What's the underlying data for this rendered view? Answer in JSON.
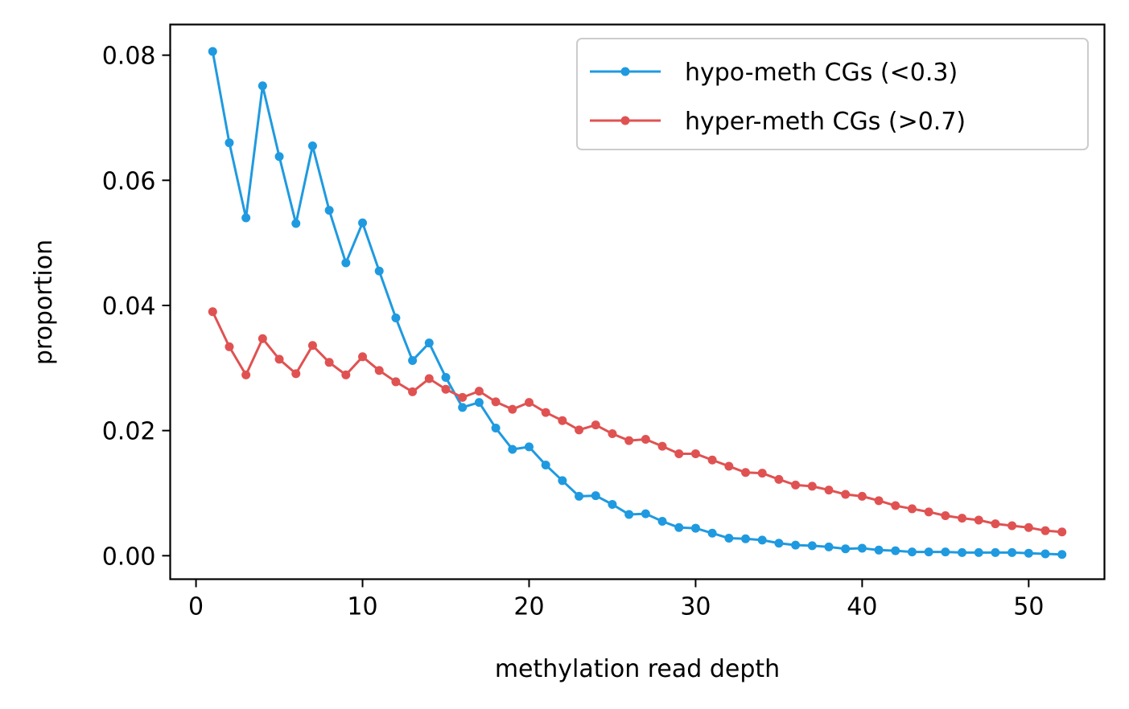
{
  "chart_data": {
    "type": "line",
    "title": "",
    "xlabel": "methylation read depth",
    "ylabel": "proportion",
    "xlim": [
      -1.55,
      54.55
    ],
    "ylim": [
      -0.00375,
      0.0849
    ],
    "xticks": [
      0,
      10,
      20,
      30,
      40,
      50
    ],
    "xtick_labels": [
      "0",
      "10",
      "20",
      "30",
      "40",
      "50"
    ],
    "yticks": [
      0.0,
      0.02,
      0.04,
      0.06,
      0.08
    ],
    "ytick_labels": [
      "0.00",
      "0.02",
      "0.04",
      "0.06",
      "0.08"
    ],
    "grid": false,
    "legend_position": "top-right",
    "x": [
      1,
      2,
      3,
      4,
      5,
      6,
      7,
      8,
      9,
      10,
      11,
      12,
      13,
      14,
      15,
      16,
      17,
      18,
      19,
      20,
      21,
      22,
      23,
      24,
      25,
      26,
      27,
      28,
      29,
      30,
      31,
      32,
      33,
      34,
      35,
      36,
      37,
      38,
      39,
      40,
      41,
      42,
      43,
      44,
      45,
      46,
      47,
      48,
      49,
      50,
      51,
      52
    ],
    "series": [
      {
        "name": "hypo-meth CGs (<0.3)",
        "color": "#1f9ae0",
        "values": [
          0.0806,
          0.066,
          0.054,
          0.0751,
          0.0638,
          0.0531,
          0.0655,
          0.0552,
          0.0468,
          0.0532,
          0.0455,
          0.038,
          0.0312,
          0.034,
          0.0285,
          0.0237,
          0.0245,
          0.0204,
          0.017,
          0.0174,
          0.0145,
          0.012,
          0.0095,
          0.0096,
          0.0082,
          0.0066,
          0.0067,
          0.0055,
          0.0045,
          0.0044,
          0.0036,
          0.0028,
          0.0027,
          0.0025,
          0.002,
          0.0017,
          0.0016,
          0.0014,
          0.0011,
          0.0012,
          0.0009,
          0.0008,
          0.0006,
          0.0006,
          0.0006,
          0.0005,
          0.0005,
          0.0005,
          0.0005,
          0.0004,
          0.0003,
          0.0002
        ]
      },
      {
        "name": "hyper-meth CGs (>0.7)",
        "color": "#e05252",
        "values": [
          0.039,
          0.0334,
          0.0289,
          0.0347,
          0.0314,
          0.0291,
          0.0336,
          0.0309,
          0.0289,
          0.0318,
          0.0296,
          0.0278,
          0.0262,
          0.0283,
          0.0266,
          0.0253,
          0.0263,
          0.0246,
          0.0234,
          0.0245,
          0.0229,
          0.0216,
          0.0201,
          0.0209,
          0.0195,
          0.0184,
          0.0186,
          0.0175,
          0.0163,
          0.0163,
          0.0153,
          0.0143,
          0.0133,
          0.0132,
          0.0122,
          0.0113,
          0.0111,
          0.0105,
          0.0098,
          0.0095,
          0.0088,
          0.008,
          0.0075,
          0.007,
          0.0064,
          0.006,
          0.0057,
          0.0051,
          0.0048,
          0.0045,
          0.004,
          0.0038
        ]
      }
    ]
  }
}
